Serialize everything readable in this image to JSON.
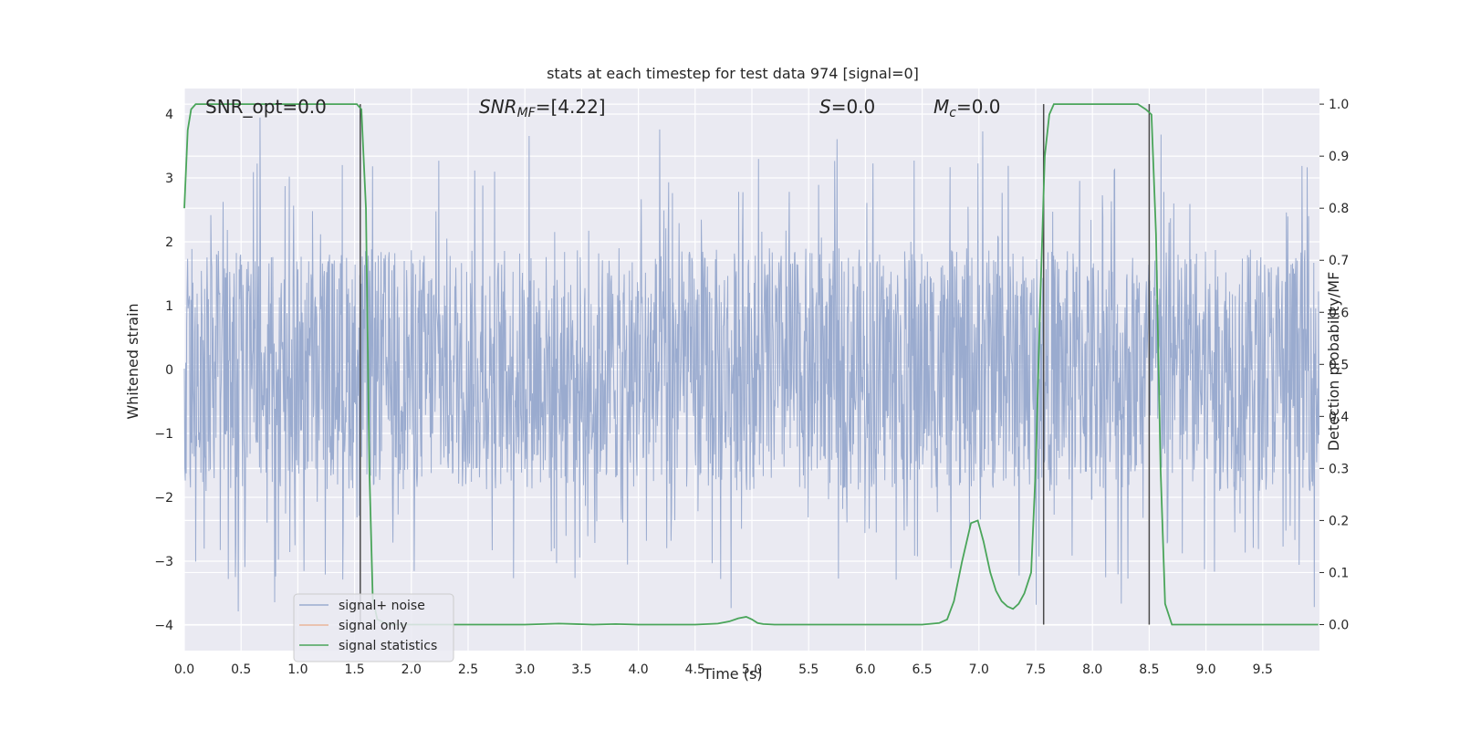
{
  "chart_data": {
    "type": "line",
    "title": "stats at each timestep for test data 974 [signal=0]",
    "xlabel": "Time (s)",
    "ylabel_left": "Whitened strain",
    "ylabel_right": "Detection probability/MF",
    "xlim": [
      0.0,
      10.0
    ],
    "ylim_left": [
      -4.4,
      4.4
    ],
    "ylim_right": [
      -0.05,
      1.03
    ],
    "x_ticks": [
      0.0,
      0.5,
      1.0,
      1.5,
      2.0,
      2.5,
      3.0,
      3.5,
      4.0,
      4.5,
      5.0,
      5.5,
      6.0,
      6.5,
      7.0,
      7.5,
      8.0,
      8.5,
      9.0,
      9.5
    ],
    "x_tick_labels": [
      "0.0",
      "0.5",
      "1.0",
      "1.5",
      "2.0",
      "2.5",
      "3.0",
      "3.5",
      "4.0",
      "4.5",
      "5.0",
      "5.5",
      "6.0",
      "6.5",
      "7.0",
      "7.5",
      "8.0",
      "8.5",
      "9.0",
      "9.5"
    ],
    "y_ticks_left": [
      4,
      3,
      2,
      1,
      0,
      -1,
      -2,
      -3,
      -4
    ],
    "y_tick_labels_left": [
      "4",
      "3",
      "2",
      "1",
      "0",
      "−1",
      "−2",
      "−3",
      "−4"
    ],
    "y_ticks_right": [
      1.0,
      0.9,
      0.8,
      0.7,
      0.6,
      0.5,
      0.4,
      0.3,
      0.2,
      0.1,
      0.0
    ],
    "y_tick_labels_right": [
      "1.0",
      "0.9",
      "0.8",
      "0.7",
      "0.6",
      "0.5",
      "0.4",
      "0.3",
      "0.2",
      "0.1",
      "0.0"
    ],
    "grid": true,
    "legend_position": "lower-left",
    "annotations": {
      "snr_opt": "SNR_opt=0.0",
      "snr_mf_base": "SNR",
      "snr_mf_sub": "MF",
      "snr_mf_value": "=[4.22]",
      "s_label": "S",
      "s_value": "=0.0",
      "mc_base": "M",
      "mc_sub": "c",
      "mc_value": "=0.0"
    },
    "vertical_markers_s": [
      1.55,
      7.57,
      8.5
    ],
    "series": [
      {
        "name": "signal+ noise",
        "color": "#9aabcf",
        "axis": "left",
        "envelope": {
          "typical_abs": 1.9,
          "peak_max": 4.0,
          "peak_min": -4.0
        }
      },
      {
        "name": "signal only",
        "color": "#eab59a",
        "axis": "left",
        "values": []
      },
      {
        "name": "signal statistics",
        "color": "#4aa55a",
        "axis": "right",
        "x": [
          0.0,
          0.03,
          0.06,
          0.1,
          0.2,
          0.5,
          1.0,
          1.4,
          1.52,
          1.56,
          1.6,
          1.63,
          1.66,
          1.7,
          1.8,
          2.0,
          2.5,
          3.0,
          3.3,
          3.6,
          3.8,
          4.0,
          4.5,
          4.7,
          4.8,
          4.88,
          4.95,
          5.0,
          5.05,
          5.1,
          5.2,
          6.0,
          6.5,
          6.65,
          6.72,
          6.78,
          6.85,
          6.93,
          6.99,
          7.04,
          7.1,
          7.15,
          7.2,
          7.25,
          7.3,
          7.35,
          7.4,
          7.46,
          7.5,
          7.54,
          7.58,
          7.62,
          7.66,
          7.7,
          7.78,
          7.9,
          8.2,
          8.4,
          8.47,
          8.52,
          8.56,
          8.6,
          8.64,
          8.7,
          8.8,
          9.0,
          9.5,
          9.99
        ],
        "y": [
          0.8,
          0.95,
          0.99,
          1.0,
          1.0,
          1.0,
          1.0,
          1.0,
          1.0,
          0.99,
          0.8,
          0.3,
          0.05,
          0.01,
          0.0,
          0.0,
          0.0,
          0.0,
          0.002,
          0.0,
          0.001,
          0.0,
          0.0,
          0.002,
          0.006,
          0.012,
          0.015,
          0.01,
          0.003,
          0.001,
          0.0,
          0.0,
          0.0,
          0.003,
          0.01,
          0.045,
          0.12,
          0.195,
          0.2,
          0.16,
          0.1,
          0.065,
          0.045,
          0.035,
          0.03,
          0.04,
          0.06,
          0.1,
          0.3,
          0.62,
          0.9,
          0.98,
          1.0,
          1.0,
          1.0,
          1.0,
          1.0,
          1.0,
          0.99,
          0.98,
          0.75,
          0.3,
          0.04,
          0.0,
          0.0,
          0.0,
          0.0,
          0.0
        ]
      }
    ]
  },
  "colors": {
    "plot_background": "#eaeaf2",
    "grid": "#ffffff",
    "marker_line": "#4a4a4a"
  }
}
